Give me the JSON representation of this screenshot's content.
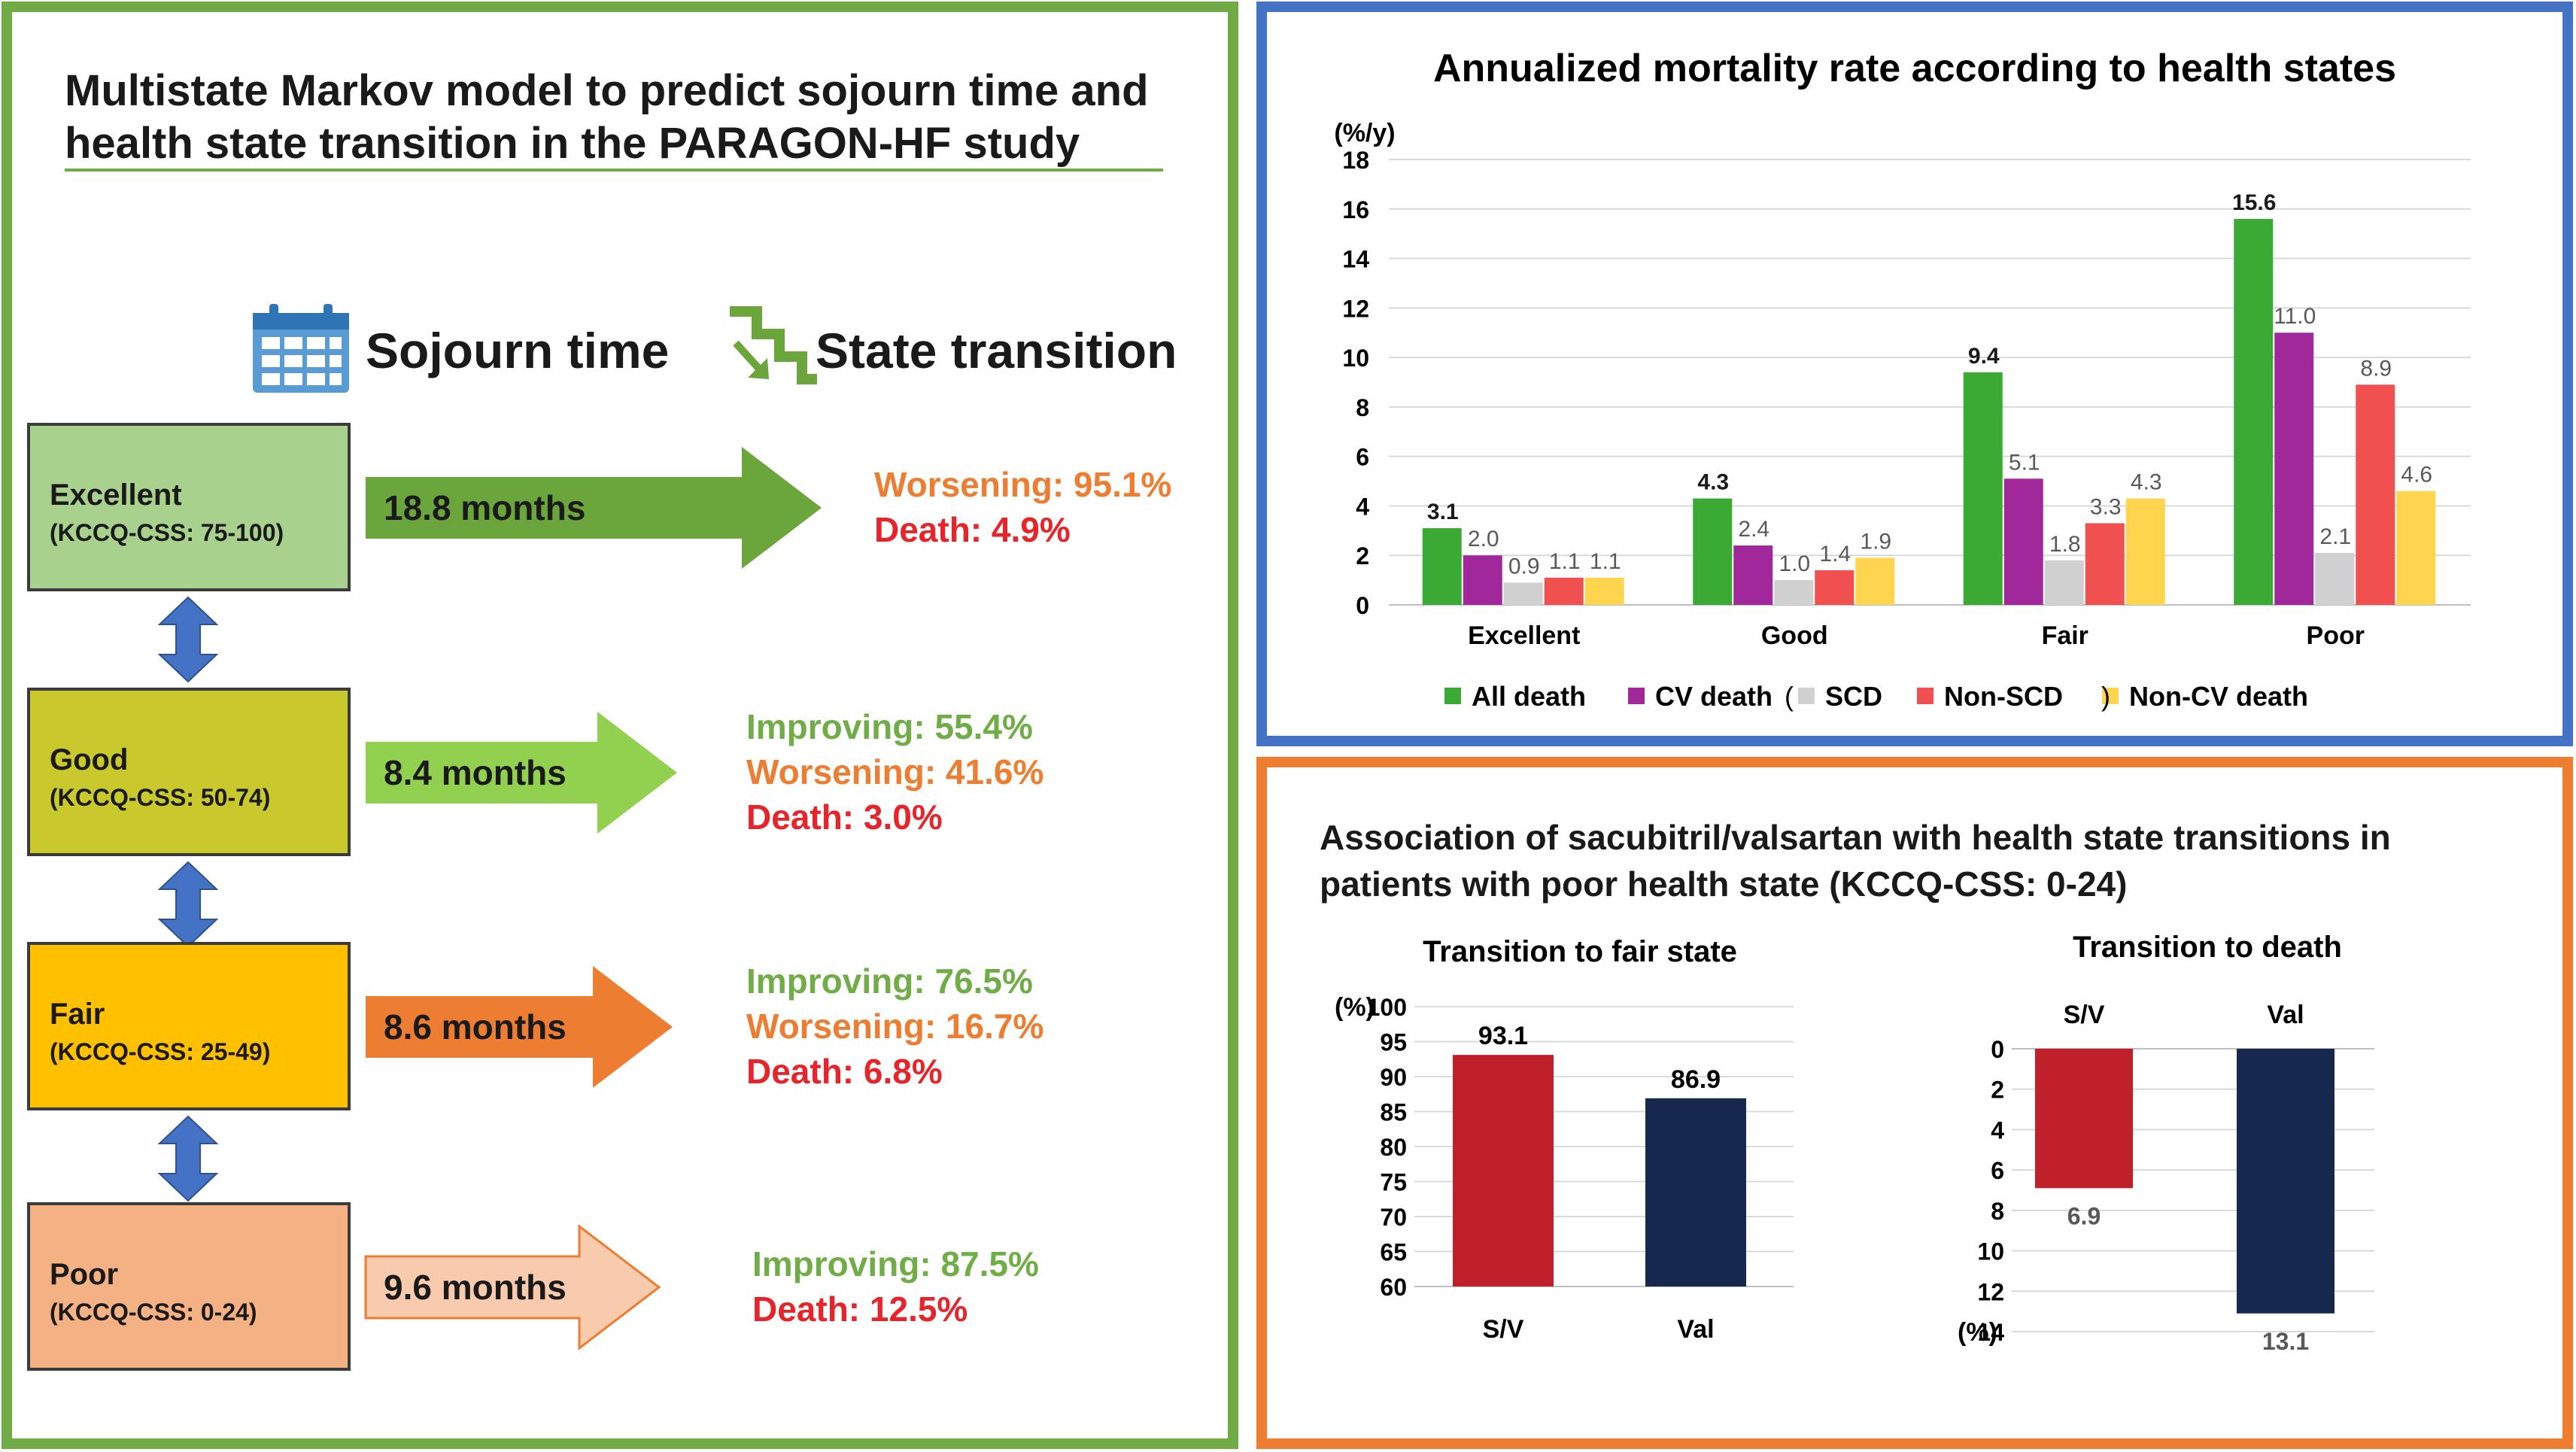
{
  "left": {
    "title_line1": "Multistate Markov model to predict sojourn time and",
    "title_line2": "health state transition in the PARAGON-HF study",
    "sojourn_header": "Sojourn time",
    "transition_header": "State transition",
    "icons": {
      "sojourn": "calendar-icon",
      "transition": "stairs-arrow-icon"
    },
    "states": [
      {
        "name": "Excellent",
        "range": "(KCCQ-CSS: 75-100)",
        "box_color": "#a9d18e",
        "arrow_color": "#6aa63b",
        "sojourn": "18.8 months",
        "results": [
          {
            "text": "Worsening: 95.1%",
            "color": "#ed7d31"
          },
          {
            "text": "Death: 4.9%",
            "color": "#e8242b"
          }
        ]
      },
      {
        "name": "Good",
        "range": "(KCCQ-CSS: 50-74)",
        "box_color": "#c9c92e",
        "arrow_color": "#92d050",
        "sojourn": "8.4 months",
        "results": [
          {
            "text": "Improving: 55.4%",
            "color": "#70ad47"
          },
          {
            "text": "Worsening: 41.6%",
            "color": "#ed7d31"
          },
          {
            "text": "Death: 3.0%",
            "color": "#e8242b"
          }
        ]
      },
      {
        "name": "Fair",
        "range": "(KCCQ-CSS: 25-49)",
        "box_color": "#ffc000",
        "arrow_color": "#ed7d31",
        "sojourn": "8.6 months",
        "results": [
          {
            "text": "Improving: 76.5%",
            "color": "#70ad47"
          },
          {
            "text": "Worsening: 16.7%",
            "color": "#ed7d31"
          },
          {
            "text": "Death: 6.8%",
            "color": "#e8242b"
          }
        ]
      },
      {
        "name": "Poor",
        "range": "(KCCQ-CSS: 0-24)",
        "box_color": "#f4b183",
        "arrow_color": "#f8cbad",
        "sojourn": "9.6 months",
        "results": [
          {
            "text": "Improving: 87.5%",
            "color": "#70ad47"
          },
          {
            "text": "Death: 12.5%",
            "color": "#e8242b"
          }
        ]
      }
    ]
  },
  "chart_data": [
    {
      "type": "bar",
      "title": "Annualized mortality rate according to health states",
      "ylabel": "(%/y)",
      "ylim": [
        0,
        18
      ],
      "yticks": [
        0,
        2,
        4,
        6,
        8,
        10,
        12,
        14,
        16,
        18
      ],
      "grid": true,
      "categories": [
        "Excellent",
        "Good",
        "Fair",
        "Poor"
      ],
      "series": [
        {
          "name": "All death",
          "color": "#3aaa35",
          "values": [
            3.1,
            4.3,
            9.4,
            15.6
          ],
          "labels": [
            "3.1",
            "4.3",
            "9.4",
            "15.6"
          ]
        },
        {
          "name": "CV death",
          "color": "#a0289b",
          "values": [
            2.0,
            2.4,
            5.1,
            11.0
          ],
          "labels": [
            "2.0",
            "2.4",
            "5.1",
            "11.0"
          ]
        },
        {
          "name": "SCD",
          "color": "#d0d0d0",
          "values": [
            0.9,
            1.0,
            1.8,
            2.1
          ],
          "labels": [
            "0.9",
            "1.0",
            "1.8",
            "2.1"
          ]
        },
        {
          "name": "Non-SCD",
          "color": "#f05050",
          "values": [
            1.1,
            1.4,
            3.3,
            8.9
          ],
          "labels": [
            "1.1",
            "1.4",
            "3.3",
            "8.9"
          ]
        },
        {
          "name": "Non-CV death",
          "color": "#ffd54f",
          "values": [
            1.1,
            1.9,
            4.3,
            4.6
          ],
          "labels": [
            "1.1",
            "1.9",
            "4.3",
            "4.6"
          ]
        }
      ],
      "legend_placement": "bottom",
      "legend_paren_open": "(",
      "legend_paren_close": ")"
    },
    {
      "type": "bar",
      "title": "Transition to fair state",
      "ylabel": "(%)",
      "ylim": [
        60,
        100
      ],
      "yticks": [
        60,
        65,
        70,
        75,
        80,
        85,
        90,
        95,
        100
      ],
      "grid": true,
      "categories": [
        "S/V",
        "Val"
      ],
      "values": [
        93.1,
        86.9
      ],
      "labels": [
        "93.1",
        "86.9"
      ],
      "colors": [
        "#c0202a",
        "#17284f"
      ]
    },
    {
      "type": "bar",
      "title": "Transition to death",
      "ylabel": "(%)",
      "ylim": [
        0,
        14
      ],
      "y_inverted": true,
      "yticks": [
        0,
        2,
        4,
        6,
        8,
        10,
        12,
        14
      ],
      "grid": true,
      "categories": [
        "S/V",
        "Val"
      ],
      "values": [
        6.9,
        13.1
      ],
      "labels": [
        "6.9",
        "13.1"
      ],
      "colors": [
        "#c0202a",
        "#17284f"
      ]
    }
  ],
  "bottom_right": {
    "title_line1": "Association of sacubitril/valsartan with health state transitions in",
    "title_line2": "patients with poor health state (KCCQ-CSS: 0-24)"
  }
}
